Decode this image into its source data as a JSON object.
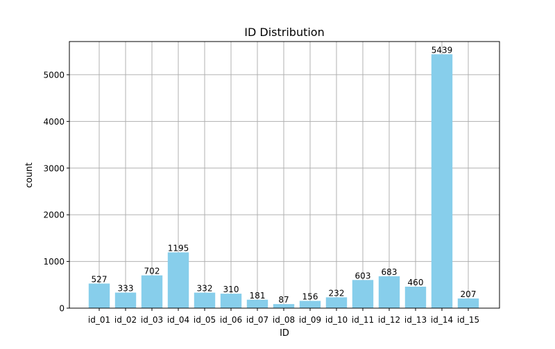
{
  "chart_data": {
    "type": "bar",
    "title": "ID Distribution",
    "xlabel": "ID",
    "ylabel": "count",
    "categories": [
      "id_01",
      "id_02",
      "id_03",
      "id_04",
      "id_05",
      "id_06",
      "id_07",
      "id_08",
      "id_09",
      "id_10",
      "id_11",
      "id_12",
      "id_13",
      "id_14",
      "id_15"
    ],
    "values": [
      527,
      333,
      702,
      1195,
      332,
      310,
      181,
      87,
      156,
      232,
      603,
      683,
      460,
      5439,
      207
    ],
    "ylim": [
      0,
      5711
    ],
    "yticks": [
      0,
      1000,
      2000,
      3000,
      4000,
      5000
    ],
    "grid": true,
    "bar_color": "#87ceeb",
    "grid_color": "#b0b0b0",
    "data_labels": true
  }
}
